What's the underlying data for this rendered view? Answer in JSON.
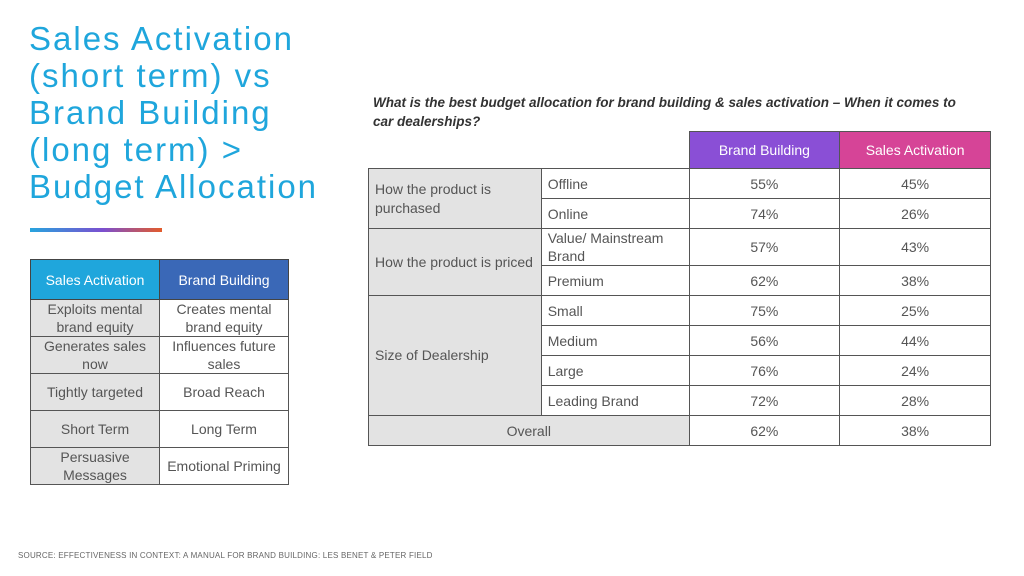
{
  "title_lines": [
    "Sales Activation",
    "(short term) vs",
    "Brand Building",
    "(long term) >",
    "Budget Allocation"
  ],
  "accent_colors": [
    "#27a4de",
    "#7b4fd0",
    "#e35b2b"
  ],
  "comparison": {
    "headers": {
      "sales_activation": "Sales Activation",
      "brand_building": "Brand Building"
    },
    "header_colors": {
      "sales_activation": "#1fa6dc",
      "brand_building": "#3a68b7"
    },
    "rows": [
      {
        "sa": "Exploits mental brand equity",
        "bb": "Creates mental brand equity"
      },
      {
        "sa": "Generates sales now",
        "bb": "Influences future sales"
      },
      {
        "sa": "Tightly targeted",
        "bb": "Broad Reach"
      },
      {
        "sa": "Short Term",
        "bb": "Long Term"
      },
      {
        "sa": "Persuasive Messages",
        "bb": "Emotional Priming"
      }
    ]
  },
  "allocation": {
    "question": "What is the best budget allocation for brand building & sales activation – When it comes to car dealerships?",
    "headers": {
      "brand_building": "Brand Building",
      "sales_activation": "Sales Activation"
    },
    "header_colors": {
      "brand_building": "#8a4fd6",
      "sales_activation": "#d64497"
    },
    "groups": [
      {
        "label": "How the product is purchased",
        "rows": [
          {
            "sub": "Offline",
            "bb": "55%",
            "sa": "45%"
          },
          {
            "sub": "Online",
            "bb": "74%",
            "sa": "26%"
          }
        ]
      },
      {
        "label": "How the product is priced",
        "rows": [
          {
            "sub": "Value/ Mainstream Brand",
            "bb": "57%",
            "sa": "43%"
          },
          {
            "sub": "Premium",
            "bb": "62%",
            "sa": "38%"
          }
        ]
      },
      {
        "label": "Size of Dealership",
        "rows": [
          {
            "sub": "Small",
            "bb": "75%",
            "sa": "25%"
          },
          {
            "sub": "Medium",
            "bb": "56%",
            "sa": "44%"
          },
          {
            "sub": "Large",
            "bb": "76%",
            "sa": "24%"
          },
          {
            "sub": "Leading Brand",
            "bb": "72%",
            "sa": "28%"
          }
        ]
      }
    ],
    "overall": {
      "label": "Overall",
      "bb": "62%",
      "sa": "38%"
    }
  },
  "source": "SOURCE: EFFECTIVENESS IN CONTEXT: A MANUAL FOR BRAND BUILDING: LES BENET & PETER FIELD"
}
